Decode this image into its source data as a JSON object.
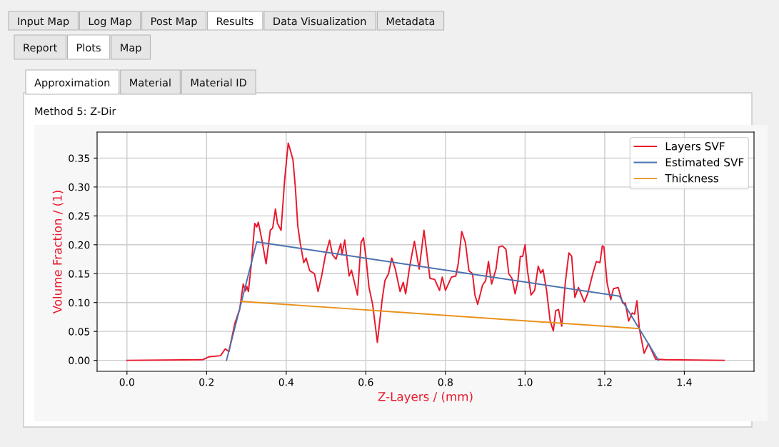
{
  "chart_data": {
    "type": "line",
    "title": "Method 5: Z-Dir",
    "annotations": [
      "Input Map",
      "Log Map",
      "Post Map",
      "Results",
      "Data Visualization",
      "Metadata",
      "Report",
      "Plots",
      "Map",
      "Approximation",
      "Material",
      "Material ID"
    ],
    "xlabel": "Z-Layers / (mm)",
    "ylabel": "Volume Fraction / (1)",
    "xlim": [
      -0.075,
      1.575
    ],
    "xticks": [
      {
        "value": 0.0,
        "label": "0.0"
      },
      0.2,
      0.4,
      0.6,
      0.8,
      {
        "value": 1.0,
        "label": "1.0"
      },
      1.2,
      1.4
    ],
    "ylim": [
      -0.019,
      0.395
    ],
    "yticks": [
      {
        "value": 0.0,
        "label": "0.00"
      },
      0.05,
      {
        "value": 0.1,
        "label": "0.10"
      },
      0.15,
      {
        "value": 0.2,
        "label": "0.20"
      },
      0.25,
      {
        "value": 0.3,
        "label": "0.30"
      },
      0.35
    ],
    "grid": true,
    "legend": "top right",
    "series": [
      {
        "name": "Layers SVF",
        "color": "#e8192c",
        "x": [
          0.0,
          0.19,
          0.205,
          0.235,
          0.247,
          0.256,
          0.271,
          0.283,
          0.292,
          0.298,
          0.301,
          0.305,
          0.3125,
          0.321,
          0.326,
          0.33,
          0.339,
          0.3495,
          0.36,
          0.366,
          0.373,
          0.378,
          0.387,
          0.396,
          0.405,
          0.411,
          0.417,
          0.423,
          0.429,
          0.435,
          0.444,
          0.45,
          0.459,
          0.471,
          0.48,
          0.489,
          0.498,
          0.509,
          0.516,
          0.525,
          0.537,
          0.54,
          0.547,
          0.558,
          0.564,
          0.579,
          0.588,
          0.594,
          0.6,
          0.608,
          0.617,
          0.629,
          0.641,
          0.648,
          0.657,
          0.665,
          0.674,
          0.686,
          0.694,
          0.7,
          0.71,
          0.722,
          0.734,
          0.746,
          0.752,
          0.761,
          0.773,
          0.785,
          0.792,
          0.8,
          0.815,
          0.826,
          0.832,
          0.841,
          0.85,
          0.859,
          0.868,
          0.874,
          0.881,
          0.893,
          0.901,
          0.908,
          0.916,
          0.927,
          0.934,
          0.943,
          0.952,
          0.959,
          0.967,
          0.975,
          0.982,
          0.988,
          0.994,
          1.0,
          1.006,
          1.015,
          1.024,
          1.033,
          1.039,
          1.045,
          1.054,
          1.063,
          1.071,
          1.077,
          1.084,
          1.092,
          1.101,
          1.11,
          1.117,
          1.125,
          1.134,
          1.149,
          1.158,
          1.17,
          1.179,
          1.188,
          1.194,
          1.198,
          1.206,
          1.215,
          1.222,
          1.234,
          1.245,
          1.252,
          1.26,
          1.269,
          1.275,
          1.281,
          1.287,
          1.299,
          1.31,
          1.328,
          1.352,
          1.5
        ],
        "values": [
          0.0,
          0.001,
          0.006,
          0.008,
          0.02,
          0.015,
          0.064,
          0.088,
          0.132,
          0.12,
          0.128,
          0.119,
          0.167,
          0.237,
          0.231,
          0.239,
          0.208,
          0.167,
          0.225,
          0.229,
          0.262,
          0.237,
          0.225,
          0.312,
          0.376,
          0.362,
          0.347,
          0.299,
          0.233,
          0.204,
          0.169,
          0.177,
          0.155,
          0.15,
          0.119,
          0.146,
          0.18,
          0.208,
          0.183,
          0.175,
          0.202,
          0.183,
          0.208,
          0.146,
          0.156,
          0.113,
          0.204,
          0.212,
          0.18,
          0.126,
          0.097,
          0.031,
          0.105,
          0.138,
          0.15,
          0.177,
          0.158,
          0.119,
          0.135,
          0.115,
          0.162,
          0.206,
          0.158,
          0.225,
          0.192,
          0.142,
          0.14,
          0.121,
          0.144,
          0.121,
          0.144,
          0.146,
          0.167,
          0.223,
          0.204,
          0.155,
          0.15,
          0.113,
          0.097,
          0.13,
          0.138,
          0.171,
          0.132,
          0.158,
          0.196,
          0.198,
          0.192,
          0.15,
          0.142,
          0.115,
          0.138,
          0.18,
          0.18,
          0.2,
          0.155,
          0.113,
          0.121,
          0.163,
          0.151,
          0.157,
          0.121,
          0.068,
          0.051,
          0.086,
          0.088,
          0.059,
          0.134,
          0.186,
          0.18,
          0.109,
          0.126,
          0.101,
          0.117,
          0.15,
          0.171,
          0.169,
          0.198,
          0.196,
          0.134,
          0.105,
          0.124,
          0.126,
          0.099,
          0.099,
          0.068,
          0.082,
          0.08,
          0.103,
          0.055,
          0.012,
          0.029,
          0.002,
          0.001,
          0.0
        ]
      },
      {
        "name": "Estimated SVF",
        "color": "#4c72b0",
        "x": [
          0.25,
          0.326,
          1.237,
          1.335
        ],
        "values": [
          0.0,
          0.205,
          0.111,
          0.0
        ]
      },
      {
        "name": "Thickness",
        "color": "#e8921c",
        "x": [
          0.286,
          1.286
        ],
        "values": [
          0.102,
          0.055
        ]
      }
    ]
  }
}
